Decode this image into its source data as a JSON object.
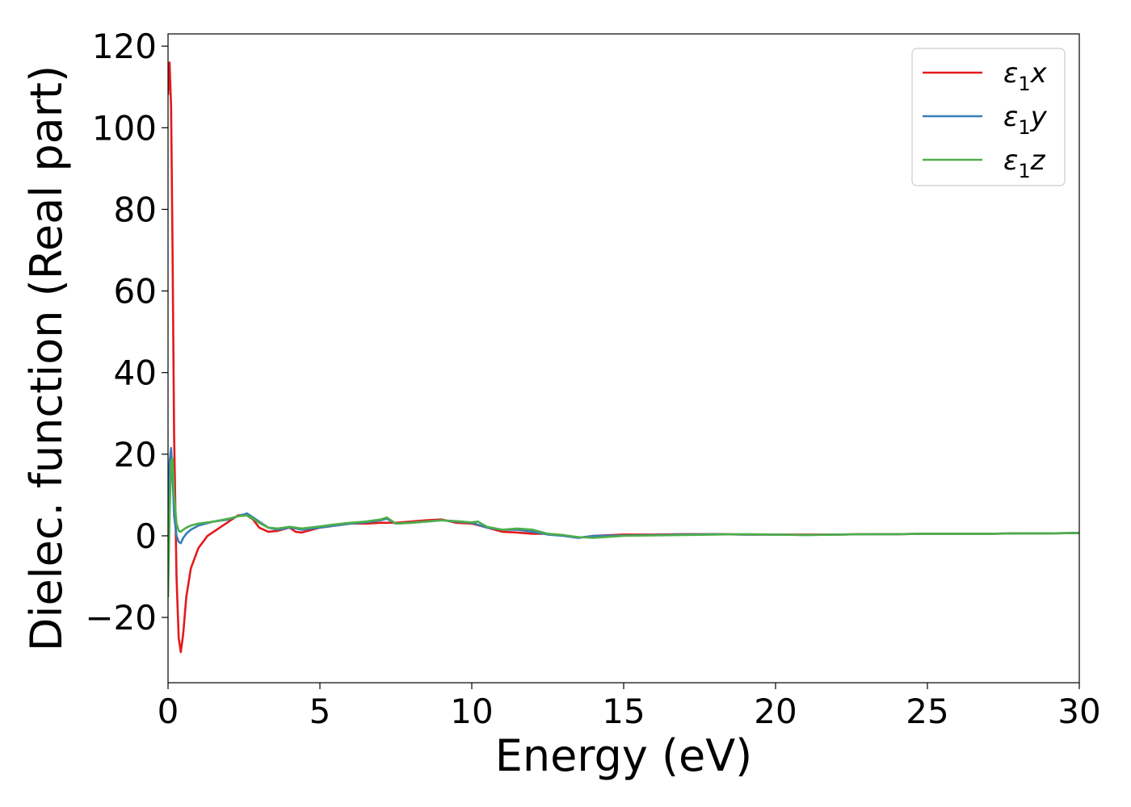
{
  "chart_data": {
    "type": "line",
    "xlabel": "Energy (eV)",
    "ylabel": "Dielec. function (Real part)",
    "xlim": [
      0,
      30
    ],
    "ylim": [
      -36,
      123
    ],
    "xticks": [
      0,
      5,
      10,
      15,
      20,
      25,
      30
    ],
    "yticks": [
      -20,
      0,
      20,
      40,
      60,
      80,
      100,
      120
    ],
    "ytick_labels": [
      "−20",
      "0",
      "20",
      "40",
      "60",
      "80",
      "100",
      "120"
    ],
    "grid": false,
    "legend_position": "top-right",
    "series": [
      {
        "name": "ε₁x",
        "legend_base": "ε",
        "legend_sub": "1",
        "legend_tail": "x",
        "color": "#e31a1c",
        "x": [
          0.0,
          0.05,
          0.1,
          0.15,
          0.2,
          0.28,
          0.35,
          0.42,
          0.5,
          0.6,
          0.75,
          1.0,
          1.3,
          1.6,
          2.0,
          2.3,
          2.55,
          2.8,
          3.0,
          3.3,
          3.6,
          4.0,
          4.2,
          4.4,
          5.0,
          5.5,
          6.0,
          6.5,
          7.0,
          7.5,
          8.0,
          8.5,
          9.0,
          9.5,
          10.0,
          10.5,
          11.0,
          11.5,
          12.0,
          12.5,
          13.0,
          13.5,
          14.0,
          15.0,
          16.0,
          17.0,
          18.0,
          19.0,
          20.0,
          21.0,
          22.0,
          23.0,
          24.0,
          25.0,
          26.0,
          27.0,
          28.0,
          29.0,
          30.0
        ],
        "y": [
          108,
          116,
          105,
          70,
          25,
          -10,
          -25,
          -28.5,
          -24,
          -15,
          -8,
          -3,
          0,
          1.5,
          3.5,
          5,
          5.2,
          4,
          2,
          1,
          1.2,
          2,
          1,
          0.8,
          2,
          2.5,
          3,
          3,
          3.2,
          3.2,
          3.5,
          3.8,
          4,
          3.2,
          3,
          2,
          1,
          0.8,
          0.5,
          0.5,
          0.2,
          -0.5,
          0,
          0.3,
          0.3,
          0.4,
          0.4,
          0.3,
          0.3,
          0.3,
          0.3,
          0.4,
          0.4,
          0.5,
          0.5,
          0.5,
          0.6,
          0.6,
          0.7
        ]
      },
      {
        "name": "ε₁y",
        "legend_base": "ε",
        "legend_sub": "1",
        "legend_tail": "y",
        "color": "#377eb8",
        "x": [
          0.0,
          0.05,
          0.1,
          0.15,
          0.2,
          0.28,
          0.35,
          0.42,
          0.5,
          0.6,
          0.75,
          1.0,
          1.5,
          2.0,
          2.3,
          2.6,
          2.8,
          3.0,
          3.3,
          3.6,
          4.0,
          4.2,
          4.4,
          5.0,
          5.5,
          6.0,
          6.5,
          7.0,
          7.2,
          7.5,
          8.0,
          8.5,
          9.0,
          9.5,
          10.0,
          10.5,
          11.0,
          11.5,
          12.0,
          12.5,
          13.0,
          13.5,
          14.0,
          15.0,
          16.0,
          17.0,
          18.0,
          19.0,
          20.0,
          21.0,
          22.0,
          23.0,
          24.0,
          25.0,
          26.0,
          27.0,
          28.0,
          29.0,
          30.0
        ],
        "y": [
          -12,
          18,
          21.5,
          15,
          5,
          0,
          -1.5,
          -1.8,
          -0.5,
          0.5,
          1.5,
          2.5,
          3.5,
          4,
          4.8,
          5.5,
          4.5,
          3.5,
          2,
          1.5,
          2,
          1.8,
          1.5,
          2,
          2.5,
          3,
          3.3,
          3.8,
          4.2,
          3,
          3.2,
          3.5,
          3.8,
          3.5,
          3.2,
          2,
          1.5,
          1.5,
          1,
          0.3,
          0,
          -0.5,
          0,
          0.1,
          0.2,
          0.3,
          0.4,
          0.3,
          0.3,
          0.2,
          0.3,
          0.4,
          0.4,
          0.5,
          0.5,
          0.5,
          0.6,
          0.6,
          0.7
        ]
      },
      {
        "name": "ε₁z",
        "legend_base": "ε",
        "legend_sub": "1",
        "legend_tail": "z",
        "color": "#4daf4a",
        "x": [
          0.0,
          0.05,
          0.1,
          0.15,
          0.2,
          0.28,
          0.35,
          0.42,
          0.5,
          0.6,
          0.75,
          1.0,
          1.5,
          2.0,
          2.3,
          2.6,
          2.8,
          3.0,
          3.3,
          3.6,
          4.0,
          4.2,
          4.4,
          5.0,
          5.5,
          6.0,
          6.5,
          7.0,
          7.2,
          7.5,
          8.0,
          8.5,
          9.0,
          9.5,
          10.0,
          10.2,
          10.5,
          11.0,
          11.5,
          12.0,
          12.5,
          13.0,
          13.5,
          14.0,
          15.0,
          16.0,
          17.0,
          18.0,
          19.0,
          20.0,
          21.0,
          22.0,
          23.0,
          24.0,
          25.0,
          26.0,
          27.0,
          28.0,
          29.0,
          30.0
        ],
        "y": [
          -15,
          5,
          18,
          19,
          10,
          3,
          1.2,
          1,
          1.5,
          2,
          2.5,
          3,
          3.5,
          4.2,
          4.8,
          5,
          4.2,
          3.2,
          2,
          1.8,
          2.2,
          2,
          1.8,
          2.3,
          2.8,
          3.2,
          3.5,
          4,
          4.5,
          3,
          3.2,
          3.5,
          3.8,
          3.6,
          3.3,
          3.5,
          2.2,
          1.5,
          1.8,
          1.5,
          0.5,
          0.2,
          -0.3,
          -0.5,
          0,
          0.1,
          0.2,
          0.3,
          0.4,
          0.3,
          0.2,
          0.3,
          0.4,
          0.4,
          0.5,
          0.5,
          0.5,
          0.6,
          0.6,
          0.7
        ]
      }
    ]
  }
}
